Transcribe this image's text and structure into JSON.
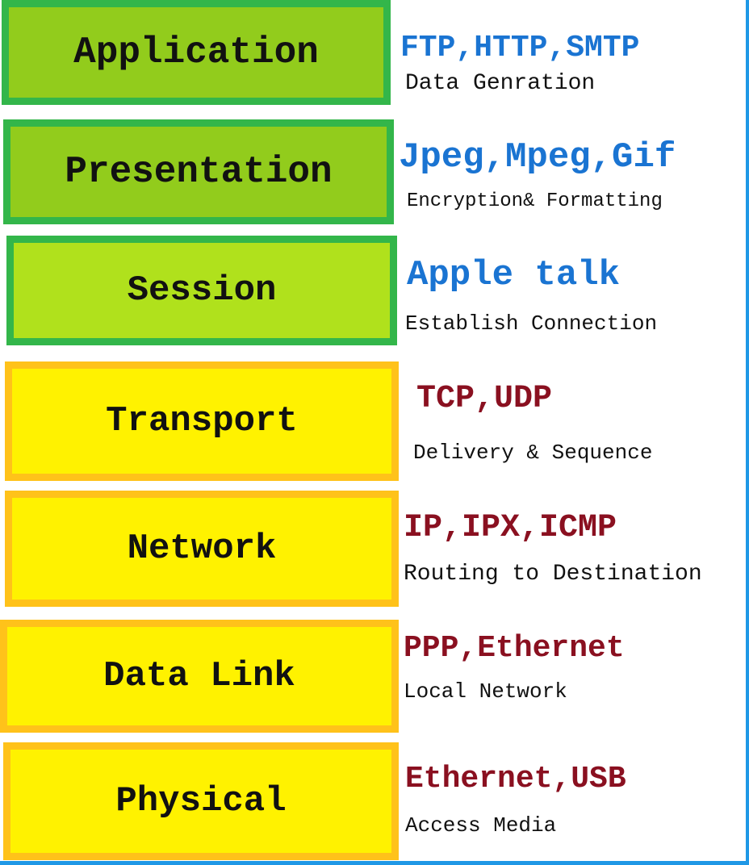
{
  "colors": {
    "upper_fill_dark": "#92cc1c",
    "upper_fill_light": "#b0e11c",
    "upper_border": "#33b64a",
    "lower_fill": "#fff200",
    "lower_border": "#ffc21a",
    "upper_protocol_text": "#1a74d2",
    "lower_protocol_text": "#8a1020",
    "frame": "#1f98e6"
  },
  "layers": [
    {
      "name": "Application",
      "protocols": "FTP,HTTP,SMTP",
      "function": "Data Genration"
    },
    {
      "name": "Presentation",
      "protocols": "Jpeg,Mpeg,Gif",
      "function": "Encryption& Formatting"
    },
    {
      "name": "Session",
      "protocols": "Apple talk",
      "function": "Establish Connection"
    },
    {
      "name": "Transport",
      "protocols": "TCP,UDP",
      "function": "Delivery & Sequence"
    },
    {
      "name": "Network",
      "protocols": "IP,IPX,ICMP",
      "function": "Routing to Destination"
    },
    {
      "name": "Data Link",
      "protocols": "PPP,Ethernet",
      "function": "Local Network"
    },
    {
      "name": "Physical",
      "protocols": "Ethernet,USB",
      "function": "Access Media"
    }
  ]
}
